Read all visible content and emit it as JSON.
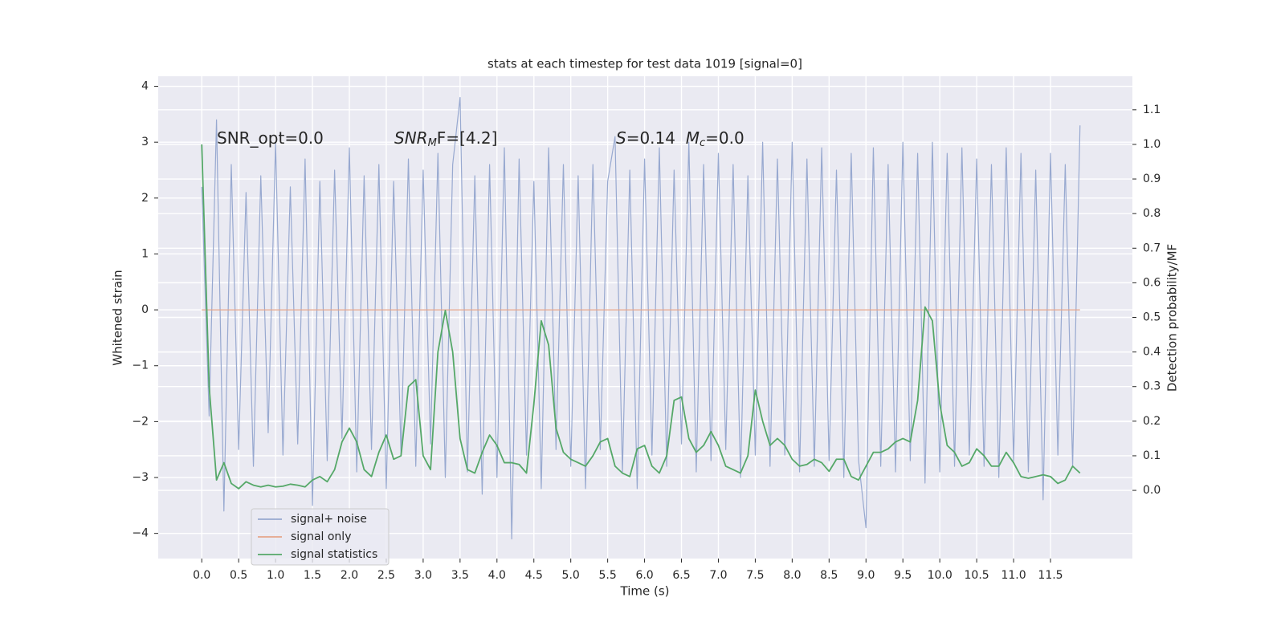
{
  "chart_data": {
    "type": "line",
    "title": "stats at each timestep for test data 1019 [signal=0]",
    "xlabel": "Time (s)",
    "ylabel": "Whitened strain",
    "y2label": "Detection probability/MF",
    "x": [
      0,
      0.1,
      0.2,
      0.3,
      0.4,
      0.5,
      0.6,
      0.7,
      0.8,
      0.9,
      1,
      1.1,
      1.2,
      1.3,
      1.4,
      1.5,
      1.6,
      1.7,
      1.8,
      1.9,
      2,
      2.1,
      2.2,
      2.3,
      2.4,
      2.5,
      2.6,
      2.7,
      2.8,
      2.9,
      3,
      3.1,
      3.2,
      3.3,
      3.4,
      3.5,
      3.6,
      3.7,
      3.8,
      3.9,
      4,
      4.1,
      4.2,
      4.3,
      4.4,
      4.5,
      4.6,
      4.7,
      4.8,
      4.9,
      5,
      5.1,
      5.2,
      5.3,
      5.4,
      5.5,
      5.6,
      5.7,
      5.8,
      5.9,
      6,
      6.1,
      6.2,
      6.3,
      6.4,
      6.5,
      6.6,
      6.7,
      6.8,
      6.9,
      7,
      7.1,
      7.2,
      7.3,
      7.4,
      7.5,
      7.6,
      7.7,
      7.8,
      7.9,
      8,
      8.1,
      8.2,
      8.3,
      8.4,
      8.5,
      8.6,
      8.7,
      8.8,
      8.9,
      9,
      9.1,
      9.2,
      9.3,
      9.4,
      9.5,
      9.6,
      9.7,
      9.8,
      9.9,
      10,
      10.1,
      10.2,
      10.3,
      10.4,
      10.5,
      10.6,
      10.7,
      10.8,
      10.9,
      11,
      11.1,
      11.2,
      11.3,
      11.4,
      11.5,
      11.6,
      11.7,
      11.8,
      11.9
    ],
    "series": [
      {
        "name": "signal+ noise",
        "color": "#98a9d0",
        "values": [
          2.2,
          -1.9,
          3.4,
          -3.6,
          2.6,
          -2.5,
          2.1,
          -2.8,
          2.4,
          -2.2,
          3.0,
          -2.6,
          2.2,
          -2.4,
          2.7,
          -3.5,
          2.3,
          -2.7,
          2.5,
          -2.3,
          2.9,
          -2.9,
          2.4,
          -2.5,
          2.6,
          -3.2,
          2.3,
          -2.6,
          2.7,
          -2.8,
          2.5,
          -2.4,
          2.8,
          -3.0,
          2.6,
          3.8,
          -2.9,
          2.4,
          -3.3,
          2.6,
          -3.0,
          2.9,
          -4.1,
          2.7,
          -2.6,
          2.3,
          -3.2,
          2.9,
          -2.5,
          2.6,
          -2.8,
          2.4,
          -3.2,
          2.6,
          -2.5,
          2.3,
          3.1,
          -2.9,
          2.5,
          -3.2,
          2.7,
          -2.6,
          2.9,
          -2.8,
          2.5,
          -2.4,
          3.0,
          -2.9,
          2.6,
          -2.7,
          2.8,
          -2.5,
          2.6,
          -3.0,
          2.4,
          -2.6,
          3.0,
          -2.8,
          2.7,
          -2.6,
          3.0,
          -2.9,
          2.7,
          -2.8,
          2.9,
          -2.7,
          2.5,
          -3.0,
          2.8,
          -2.7,
          -3.9,
          2.9,
          -2.8,
          2.6,
          -2.9,
          3.0,
          -2.7,
          2.8,
          -3.1,
          3.0,
          -2.9,
          2.8,
          -2.8,
          2.9,
          -2.6,
          2.7,
          -2.8,
          2.6,
          -3.0,
          2.9,
          -2.7,
          2.8,
          -2.9,
          2.5,
          -3.4,
          2.8,
          -2.6,
          2.6,
          -2.8,
          3.3
        ]
      },
      {
        "name": "signal only",
        "color": "#e5a58a",
        "x": [
          0,
          11.9
        ],
        "values": [
          0,
          0
        ]
      },
      {
        "name": "signal statistics",
        "color": "#55a868",
        "axis": "y2",
        "values": [
          1.0,
          0.3,
          0.03,
          0.08,
          0.02,
          0.005,
          0.025,
          0.015,
          0.01,
          0.015,
          0.01,
          0.012,
          0.018,
          0.015,
          0.01,
          0.03,
          0.04,
          0.025,
          0.06,
          0.14,
          0.18,
          0.14,
          0.06,
          0.04,
          0.11,
          0.16,
          0.09,
          0.1,
          0.3,
          0.32,
          0.1,
          0.06,
          0.4,
          0.52,
          0.4,
          0.15,
          0.06,
          0.05,
          0.11,
          0.16,
          0.13,
          0.08,
          0.08,
          0.075,
          0.05,
          0.25,
          0.49,
          0.42,
          0.18,
          0.11,
          0.09,
          0.08,
          0.07,
          0.1,
          0.14,
          0.15,
          0.07,
          0.05,
          0.04,
          0.12,
          0.13,
          0.07,
          0.05,
          0.1,
          0.26,
          0.27,
          0.15,
          0.11,
          0.13,
          0.17,
          0.13,
          0.07,
          0.06,
          0.05,
          0.1,
          0.29,
          0.2,
          0.13,
          0.15,
          0.13,
          0.09,
          0.07,
          0.075,
          0.09,
          0.08,
          0.055,
          0.09,
          0.09,
          0.04,
          0.03,
          0.07,
          0.11,
          0.11,
          0.12,
          0.14,
          0.15,
          0.14,
          0.26,
          0.53,
          0.49,
          0.25,
          0.13,
          0.11,
          0.07,
          0.08,
          0.12,
          0.1,
          0.07,
          0.07,
          0.11,
          0.08,
          0.04,
          0.035,
          0.04,
          0.045,
          0.04,
          0.02,
          0.03,
          0.07,
          0.05
        ]
      }
    ],
    "xlim": [
      -0.59,
      12.61
    ],
    "ylim": [
      -4.45,
      4.18
    ],
    "y2lim": [
      -0.197,
      1.197
    ],
    "xticks": [
      {
        "value": 0,
        "label": "0.0"
      },
      0.5,
      {
        "value": 1,
        "label": "1.0"
      },
      1.5,
      {
        "value": 2,
        "label": "2.0"
      },
      2.5,
      {
        "value": 3,
        "label": "3.0"
      },
      3.5,
      {
        "value": 4,
        "label": "4.0"
      },
      4.5,
      {
        "value": 5,
        "label": "5.0"
      },
      5.5,
      {
        "value": 6,
        "label": "6.0"
      },
      6.5,
      {
        "value": 7,
        "label": "7.0"
      },
      7.5,
      {
        "value": 8,
        "label": "8.0"
      },
      8.5,
      {
        "value": 9,
        "label": "9.0"
      },
      9.5,
      {
        "value": 10,
        "label": "10.0"
      },
      10.5,
      {
        "value": 11,
        "label": "11.0"
      },
      11.5
    ],
    "yticks": [
      {
        "value": -4,
        "label": "−4"
      },
      {
        "value": -3,
        "label": "−3"
      },
      {
        "value": -2,
        "label": "−2"
      },
      {
        "value": -1,
        "label": "−1"
      },
      0,
      1,
      2,
      3,
      4
    ],
    "y2ticks": [
      {
        "value": 0,
        "label": "0.0"
      },
      0.1,
      0.2,
      0.3,
      0.4,
      0.5,
      0.6,
      0.7,
      0.8,
      0.9,
      {
        "value": 1,
        "label": "1.0"
      },
      1.1
    ],
    "grid": true,
    "legend": "lower left",
    "annotations": [
      {
        "parts": [
          {
            "text": "SNR_opt=0.0"
          }
        ]
      },
      {
        "parts": [
          {
            "text": "SNR",
            "italic": true
          },
          {
            "text": "M",
            "italic": true,
            "sub": true
          },
          {
            "text": "F=[4.2]"
          }
        ]
      },
      {
        "parts": [
          {
            "text": "S",
            "italic": true
          },
          {
            "text": "=0.14  "
          },
          {
            "text": "M",
            "italic": true
          },
          {
            "text": "c",
            "italic": true,
            "sub": true
          },
          {
            "text": "=0.0"
          }
        ]
      }
    ]
  }
}
